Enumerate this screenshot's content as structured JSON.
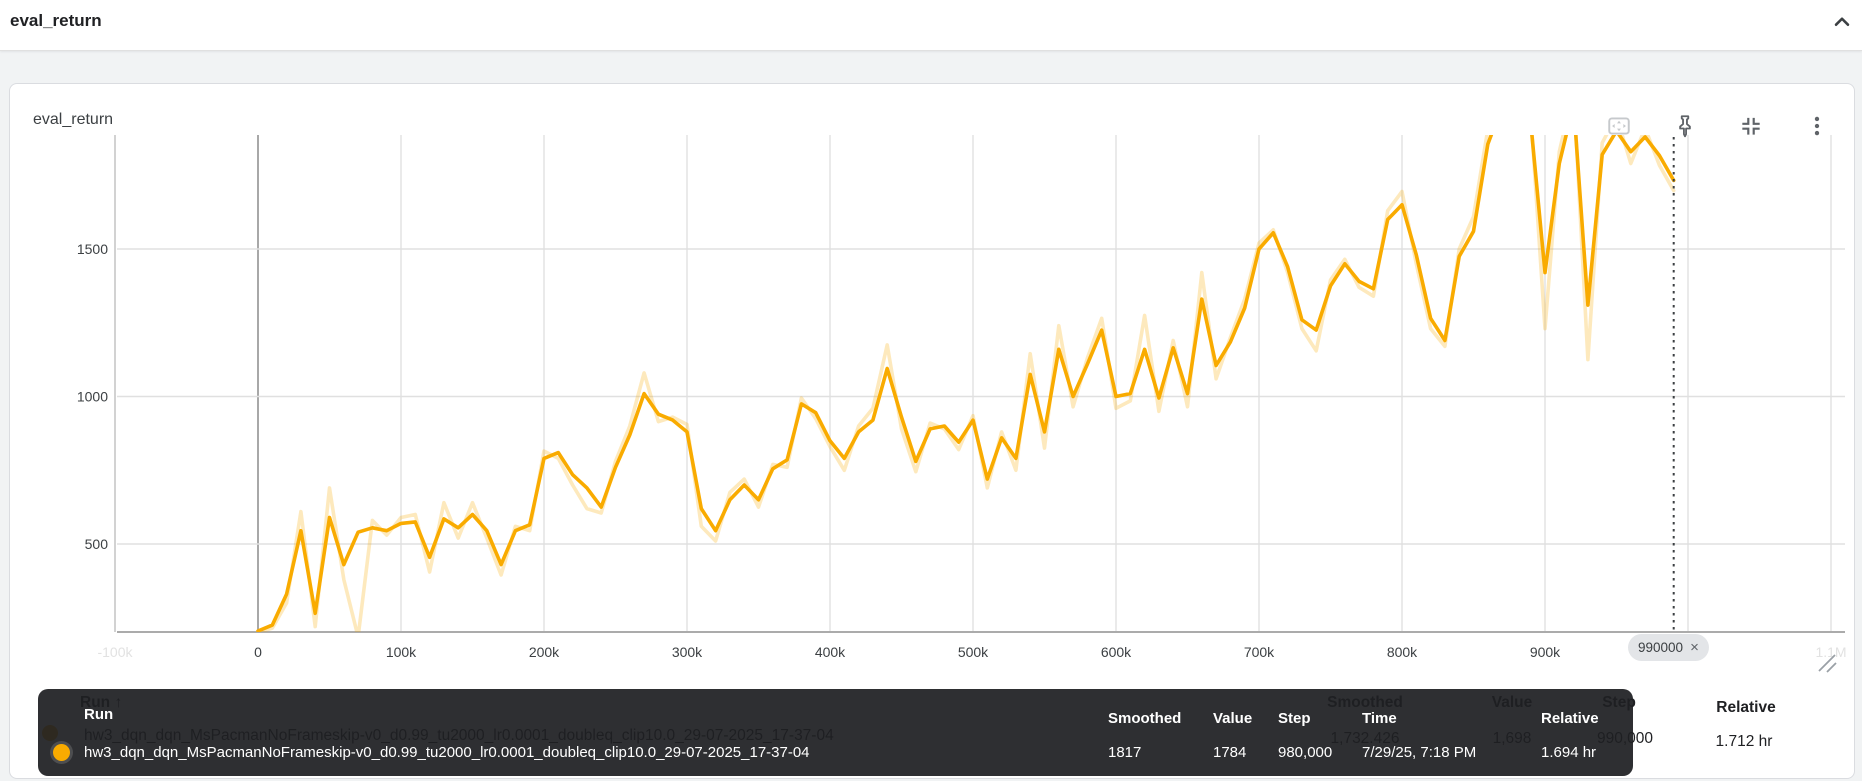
{
  "page_header": {
    "title": "eval_return"
  },
  "card": {
    "title": "eval_return",
    "toolbar": {
      "icons": [
        "full-size-icon",
        "pin-icon",
        "collapse-card-icon",
        "more-menu-icon"
      ]
    }
  },
  "run": {
    "name": "hw3_dqn_dqn_MsPacmanNoFrameskip-v0_d0.99_tu2000_lr0.0001_doubleq_clip10.0_29-07-2025_17-37-04",
    "color": "#F9AB00"
  },
  "cursor_chip": {
    "label": "990000",
    "close_glyph": "×"
  },
  "table": {
    "run_header": "Run",
    "sort_arrow": "↑",
    "columns": [
      "Smoothed",
      "Value",
      "Step",
      "Relative"
    ],
    "row": {
      "smoothed": "1,732.426",
      "value": "1,698",
      "step": "990,000",
      "relative": "1.712 hr"
    }
  },
  "tooltip": {
    "columns": [
      "Run",
      "Smoothed",
      "Value",
      "Step",
      "Time",
      "Relative"
    ],
    "row": {
      "smoothed": "1817",
      "value": "1784",
      "step": "980,000",
      "time": "7/29/25, 7:18 PM",
      "relative": "1.694 hr"
    }
  },
  "chart_data": {
    "type": "line",
    "title": "eval_return",
    "xlabel": "",
    "ylabel": "",
    "x_tick_labels": [
      "-100k",
      "0",
      "100k",
      "200k",
      "300k",
      "400k",
      "500k",
      "600k",
      "700k",
      "800k",
      "900k",
      "1M",
      "1.1M"
    ],
    "y_ticks": [
      500,
      1000,
      1500
    ],
    "x_visible_range": [
      -100000,
      1110000
    ],
    "y_visible_range": [
      200,
      1890
    ],
    "grid": true,
    "legend_position": "none",
    "cursor_step": 990000,
    "colors": {
      "smoothed": "#F9AB00",
      "raw": "rgba(249,171,0,0.26)"
    },
    "x": [
      0,
      10000,
      20000,
      30000,
      40000,
      50000,
      60000,
      70000,
      80000,
      90000,
      100000,
      110000,
      120000,
      130000,
      140000,
      150000,
      160000,
      170000,
      180000,
      190000,
      200000,
      210000,
      220000,
      230000,
      240000,
      250000,
      260000,
      270000,
      280000,
      290000,
      300000,
      310000,
      320000,
      330000,
      340000,
      350000,
      360000,
      370000,
      380000,
      390000,
      400000,
      410000,
      420000,
      430000,
      440000,
      450000,
      460000,
      470000,
      480000,
      490000,
      500000,
      510000,
      520000,
      530000,
      540000,
      550000,
      560000,
      570000,
      580000,
      590000,
      600000,
      610000,
      620000,
      630000,
      640000,
      650000,
      660000,
      670000,
      680000,
      690000,
      700000,
      710000,
      720000,
      730000,
      740000,
      750000,
      760000,
      770000,
      780000,
      790000,
      800000,
      810000,
      820000,
      830000,
      840000,
      850000,
      860000,
      870000,
      880000,
      890000,
      900000,
      910000,
      920000,
      930000,
      940000,
      950000,
      960000,
      970000,
      980000,
      990000
    ],
    "series": [
      {
        "name": "smoothed",
        "values": [
          205,
          225,
          330,
          545,
          265,
          590,
          430,
          540,
          555,
          545,
          570,
          575,
          455,
          585,
          555,
          600,
          545,
          430,
          545,
          565,
          790,
          810,
          735,
          690,
          625,
          760,
          870,
          1010,
          940,
          920,
          880,
          620,
          545,
          650,
          700,
          650,
          755,
          785,
          975,
          945,
          850,
          790,
          880,
          920,
          1095,
          930,
          780,
          890,
          900,
          845,
          920,
          720,
          860,
          790,
          1075,
          880,
          1160,
          1000,
          1110,
          1225,
          1000,
          1010,
          1160,
          995,
          1165,
          1010,
          1330,
          1105,
          1185,
          1300,
          1500,
          1555,
          1440,
          1260,
          1225,
          1375,
          1450,
          1390,
          1365,
          1600,
          1650,
          1480,
          1265,
          1190,
          1475,
          1560,
          1855,
          1985,
          2000,
          1930,
          1420,
          1790,
          1990,
          1310,
          1820,
          1900,
          1830,
          1880,
          1817,
          1732.426
        ]
      },
      {
        "name": "raw",
        "values": [
          200,
          215,
          300,
          610,
          220,
          690,
          380,
          185,
          580,
          530,
          590,
          600,
          405,
          640,
          520,
          640,
          520,
          395,
          560,
          545,
          815,
          790,
          700,
          620,
          605,
          780,
          900,
          1080,
          915,
          930,
          905,
          560,
          510,
          675,
          720,
          625,
          770,
          760,
          995,
          925,
          830,
          750,
          900,
          960,
          1175,
          890,
          745,
          910,
          890,
          820,
          935,
          690,
          880,
          750,
          1145,
          825,
          1240,
          965,
          1130,
          1265,
          960,
          985,
          1275,
          950,
          1190,
          965,
          1420,
          1060,
          1200,
          1330,
          1520,
          1565,
          1420,
          1230,
          1155,
          1395,
          1465,
          1370,
          1340,
          1630,
          1695,
          1450,
          1230,
          1170,
          1500,
          1610,
          1905,
          2030,
          2050,
          1960,
          1230,
          1830,
          2040,
          1125,
          1860,
          1950,
          1790,
          1910,
          1784,
          1698
        ]
      }
    ]
  }
}
